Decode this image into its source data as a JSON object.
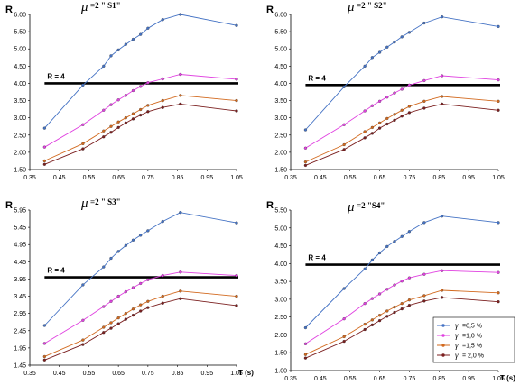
{
  "colors": {
    "gamma_0_5": "#4472c4",
    "gamma_1_0": "#e040e0",
    "gamma_1_5": "#d2691e",
    "gamma_2_0": "#7b1f1f",
    "r4_line": "#000000"
  },
  "legend": {
    "placement": "bottom-right of fourth panel",
    "entries": [
      {
        "symbol": "γ",
        "text": "=0,5 %"
      },
      {
        "symbol": "γ",
        "text": "=1,0 %"
      },
      {
        "symbol": "γ",
        "text": "=1,5 %"
      },
      {
        "symbol": "γ",
        "text": "= 2,0 %"
      }
    ]
  },
  "chart_data": [
    {
      "type": "line",
      "mu_symbol": "μ",
      "title": "=2  \" S1\"",
      "ylabel": "R",
      "xlabel": "",
      "r4_label": "R = 4",
      "r4_value": 4.0,
      "xlim": [
        0.35,
        1.05
      ],
      "ylim": [
        1.5,
        6.0
      ],
      "x_ticks": [
        "0.35",
        "0.45",
        "0.55",
        "0.65",
        "0.75",
        "0.85",
        "0.95",
        "1.05"
      ],
      "y_ticks": [
        "1.50",
        "2.00",
        "2.50",
        "3.00",
        "3.50",
        "4.00",
        "4.50",
        "5.00",
        "5.50",
        "6.00"
      ],
      "x": [
        0.4,
        0.53,
        0.6,
        0.625,
        0.65,
        0.675,
        0.7,
        0.725,
        0.75,
        0.8,
        0.86,
        1.05
      ],
      "series": [
        {
          "values": [
            2.7,
            3.95,
            4.5,
            4.8,
            4.97,
            5.13,
            5.28,
            5.42,
            5.6,
            5.85,
            6.0,
            5.68
          ]
        },
        {
          "values": [
            2.15,
            2.8,
            3.22,
            3.38,
            3.52,
            3.65,
            3.79,
            3.91,
            4.02,
            4.13,
            4.26,
            4.12
          ]
        },
        {
          "values": [
            1.75,
            2.25,
            2.62,
            2.75,
            2.88,
            3.0,
            3.12,
            3.24,
            3.36,
            3.5,
            3.65,
            3.5
          ]
        },
        {
          "values": [
            1.65,
            2.1,
            2.45,
            2.58,
            2.72,
            2.85,
            2.97,
            3.08,
            3.18,
            3.3,
            3.4,
            3.2
          ]
        }
      ]
    },
    {
      "type": "line",
      "mu_symbol": "μ",
      "title": "=2  \" S2\"",
      "ylabel": "R",
      "xlabel": "",
      "r4_label": "R = 4",
      "r4_value": 3.95,
      "xlim": [
        0.35,
        1.05
      ],
      "ylim": [
        1.5,
        6.0
      ],
      "x_ticks": [
        "0.35",
        "0.45",
        "0.55",
        "0.65",
        "0.75",
        "0.85",
        "0.95",
        "1.05"
      ],
      "y_ticks": [
        "1.50",
        "2.00",
        "2.50",
        "3.00",
        "3.50",
        "4.00",
        "4.50",
        "5.00",
        "5.50",
        "6.00"
      ],
      "x": [
        0.4,
        0.53,
        0.6,
        0.625,
        0.65,
        0.675,
        0.7,
        0.725,
        0.75,
        0.8,
        0.86,
        1.05
      ],
      "series": [
        {
          "values": [
            2.65,
            3.9,
            4.5,
            4.75,
            4.9,
            5.05,
            5.2,
            5.35,
            5.48,
            5.75,
            5.93,
            5.65
          ]
        },
        {
          "values": [
            2.12,
            2.8,
            3.2,
            3.35,
            3.48,
            3.6,
            3.72,
            3.83,
            3.95,
            4.08,
            4.22,
            4.1
          ]
        },
        {
          "values": [
            1.72,
            2.22,
            2.6,
            2.72,
            2.85,
            2.98,
            3.1,
            3.22,
            3.33,
            3.48,
            3.62,
            3.48
          ]
        },
        {
          "values": [
            1.62,
            2.08,
            2.42,
            2.55,
            2.7,
            2.82,
            2.93,
            3.05,
            3.15,
            3.28,
            3.4,
            3.22
          ]
        }
      ]
    },
    {
      "type": "line",
      "mu_symbol": "μ",
      "title": "=2  \" S3\"",
      "ylabel": "R",
      "xlabel": "T (s)",
      "r4_label": "R = 4",
      "r4_value": 4.0,
      "xlim": [
        0.35,
        1.05
      ],
      "ylim": [
        1.45,
        5.95
      ],
      "x_ticks": [
        "0.35",
        "0.45",
        "0.55",
        "0.65",
        "0.75",
        "0.85",
        "0.95",
        "1.05"
      ],
      "y_ticks": [
        "1.45",
        "1.95",
        "2.45",
        "2.95",
        "3.45",
        "3.95",
        "4.45",
        "4.95",
        "5.45",
        "5.95"
      ],
      "x": [
        0.4,
        0.53,
        0.6,
        0.625,
        0.65,
        0.675,
        0.7,
        0.725,
        0.75,
        0.8,
        0.86,
        1.05
      ],
      "series": [
        {
          "values": [
            2.6,
            3.78,
            4.3,
            4.55,
            4.75,
            4.92,
            5.08,
            5.22,
            5.35,
            5.62,
            5.88,
            5.58
          ]
        },
        {
          "values": [
            2.08,
            2.75,
            3.15,
            3.3,
            3.45,
            3.58,
            3.7,
            3.82,
            3.93,
            4.05,
            4.15,
            4.05
          ]
        },
        {
          "values": [
            1.7,
            2.18,
            2.55,
            2.68,
            2.82,
            2.95,
            3.08,
            3.2,
            3.3,
            3.45,
            3.6,
            3.45
          ]
        },
        {
          "values": [
            1.6,
            2.05,
            2.4,
            2.52,
            2.65,
            2.78,
            2.9,
            3.02,
            3.12,
            3.25,
            3.38,
            3.18
          ]
        }
      ]
    },
    {
      "type": "line",
      "mu_symbol": "μ",
      "title": "=2   \"S4\"",
      "ylabel": "R",
      "xlabel": "T (s)",
      "r4_label": "R = 4",
      "r4_value": 3.97,
      "xlim": [
        0.35,
        1.05
      ],
      "ylim": [
        1.0,
        5.5
      ],
      "x_ticks": [
        "0.35",
        "0.45",
        "0.55",
        "0.65",
        "0.75",
        "0.85",
        "0.95",
        "1.05"
      ],
      "y_ticks": [
        "1.00",
        "1.50",
        "2.00",
        "2.50",
        "3.00",
        "3.50",
        "4.00",
        "4.50",
        "5.00",
        "5.50"
      ],
      "x": [
        0.4,
        0.53,
        0.6,
        0.625,
        0.65,
        0.675,
        0.7,
        0.725,
        0.75,
        0.8,
        0.86,
        1.05
      ],
      "series": [
        {
          "values": [
            2.2,
            3.3,
            3.85,
            4.1,
            4.3,
            4.48,
            4.62,
            4.76,
            4.9,
            5.15,
            5.33,
            5.15
          ]
        },
        {
          "values": [
            1.75,
            2.45,
            2.88,
            3.02,
            3.15,
            3.28,
            3.4,
            3.51,
            3.6,
            3.7,
            3.8,
            3.75
          ]
        },
        {
          "values": [
            1.45,
            1.95,
            2.3,
            2.42,
            2.55,
            2.67,
            2.78,
            2.88,
            2.98,
            3.1,
            3.25,
            3.18
          ]
        },
        {
          "values": [
            1.35,
            1.82,
            2.15,
            2.28,
            2.4,
            2.52,
            2.63,
            2.73,
            2.83,
            2.95,
            3.05,
            2.93
          ]
        }
      ]
    }
  ]
}
